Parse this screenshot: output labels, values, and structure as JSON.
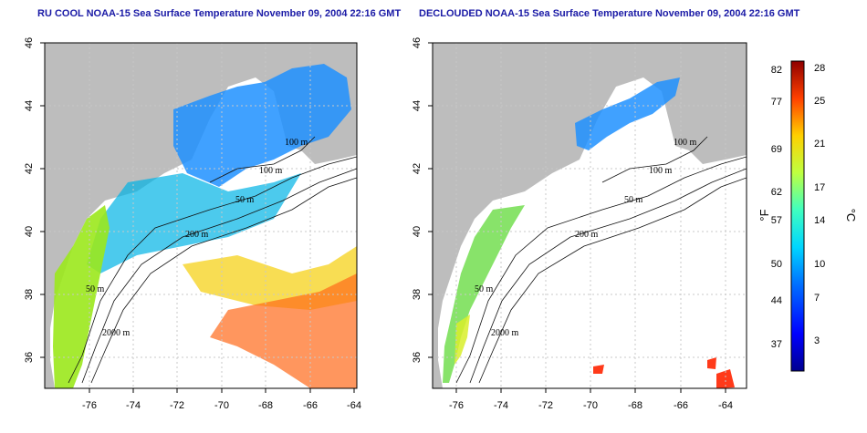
{
  "panels": [
    {
      "title": "RU COOL NOAA-15 Sea Surface Temperature November 09, 2004 22:16 GMT",
      "contour_labels": [
        "100 m",
        "100 m",
        "50 m",
        "200 m",
        "50 m",
        "2000 m"
      ]
    },
    {
      "title": "DECLOUDED NOAA-15 Sea Surface Temperature November 09, 2004 22:16 GMT",
      "contour_labels": [
        "100 m",
        "100 m",
        "50 m",
        "200 m",
        "50 m",
        "2000 m"
      ]
    }
  ],
  "axes": {
    "x_ticks": [
      "-76",
      "-74",
      "-72",
      "-70",
      "-68",
      "-66",
      "-64"
    ],
    "y_ticks": [
      "46",
      "44",
      "42",
      "40",
      "38",
      "36"
    ]
  },
  "colorbar": {
    "fahrenheit_label": "°F",
    "celsius_label": "°C",
    "fahrenheit_ticks": [
      "82",
      "77",
      "69",
      "62",
      "57",
      "50",
      "44",
      "37"
    ],
    "celsius_ticks": [
      "28",
      "25",
      "21",
      "17",
      "14",
      "10",
      "7",
      "3"
    ]
  },
  "colors": {
    "land": "#bdbdbd",
    "title": "#1a1aa6",
    "grid": "#c8c8c8"
  }
}
